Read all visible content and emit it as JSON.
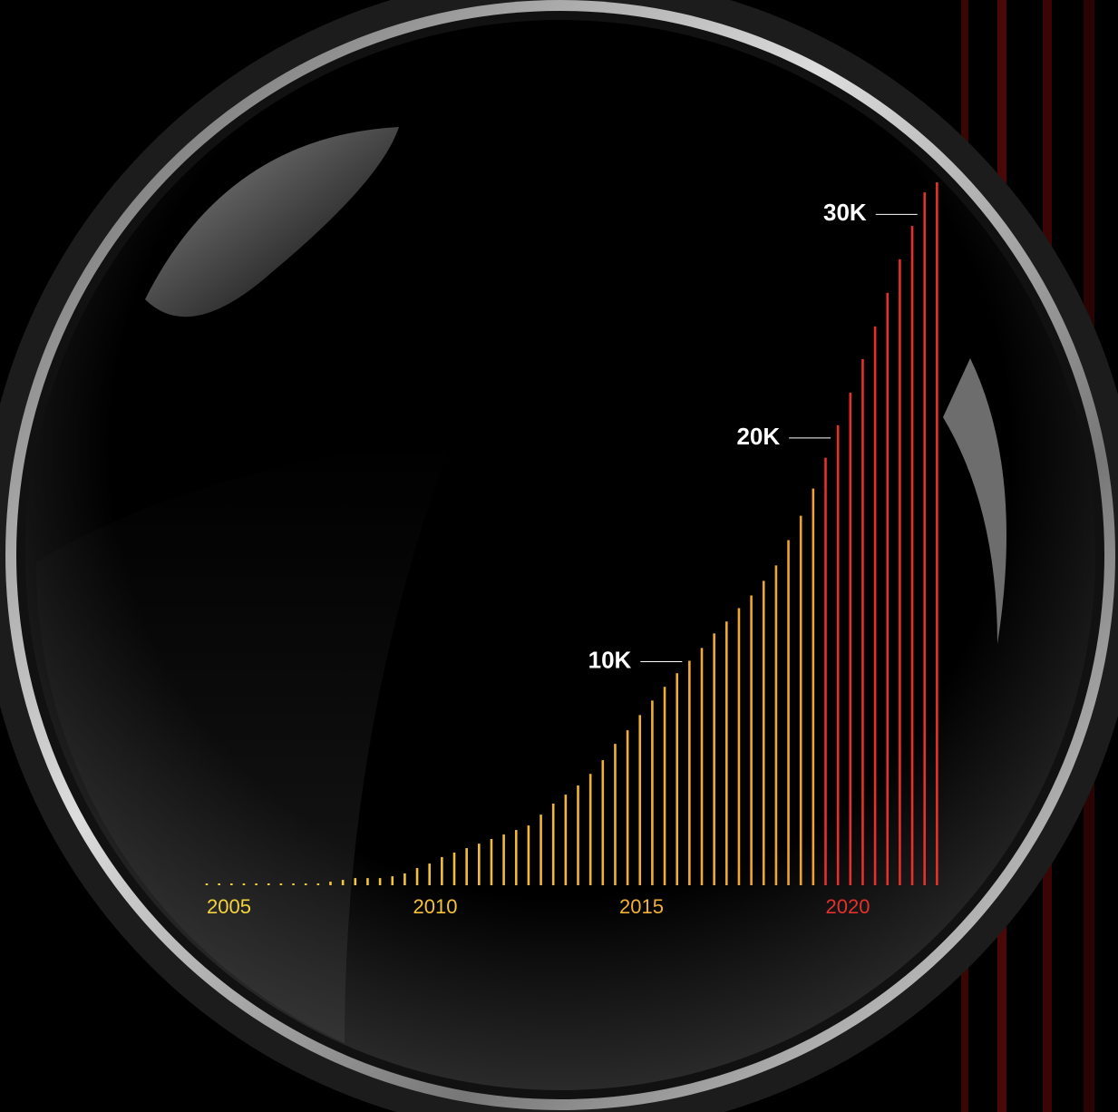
{
  "chart_data": {
    "type": "bar",
    "x": [
      2005,
      2005.3,
      2005.6,
      2005.9,
      2006.2,
      2006.5,
      2006.8,
      2007.1,
      2007.4,
      2007.7,
      2008,
      2008.3,
      2008.6,
      2008.9,
      2009.2,
      2009.5,
      2009.8,
      2010.1,
      2010.4,
      2010.7,
      2011,
      2011.3,
      2011.6,
      2011.9,
      2012.2,
      2012.5,
      2012.8,
      2013.1,
      2013.4,
      2013.7,
      2014,
      2014.3,
      2014.6,
      2014.9,
      2015.2,
      2015.5,
      2015.8,
      2016.1,
      2016.4,
      2016.7,
      2017,
      2017.3,
      2017.6,
      2017.9,
      2018.2,
      2018.5,
      2018.8,
      2019.1,
      2019.4,
      2019.7,
      2020,
      2020.3,
      2020.6,
      2020.9,
      2021.2,
      2021.5,
      2021.8,
      2022.1,
      2022.4,
      2022.7
    ],
    "values": [
      40,
      40,
      40,
      40,
      40,
      40,
      40,
      40,
      80,
      80,
      160,
      240,
      320,
      320,
      320,
      400,
      530,
      770,
      970,
      1260,
      1460,
      1660,
      1860,
      2070,
      2270,
      2470,
      2670,
      3160,
      3650,
      4050,
      4460,
      4980,
      5590,
      6320,
      6930,
      7610,
      8260,
      8870,
      9480,
      10040,
      10610,
      11260,
      11790,
      12390,
      12960,
      13610,
      14300,
      15430,
      16520,
      17740,
      19120,
      20570,
      22030,
      23530,
      24990,
      26490,
      27990,
      29480,
      30980,
      31430
    ],
    "xlim": [
      2005,
      2023
    ],
    "xticks": [
      2005,
      2010,
      2015,
      2020
    ],
    "ylim": [
      0,
      32000
    ],
    "yticks": [
      {
        "value": 10000,
        "label": "10K"
      },
      {
        "value": 20000,
        "label": "20K"
      },
      {
        "value": 30000,
        "label": "30K"
      }
    ],
    "gradient": [
      "#f4d33c",
      "#f0a030"
    ],
    "highlight_color": "#e5302c",
    "highlight_from": 2020,
    "grid": false
  }
}
